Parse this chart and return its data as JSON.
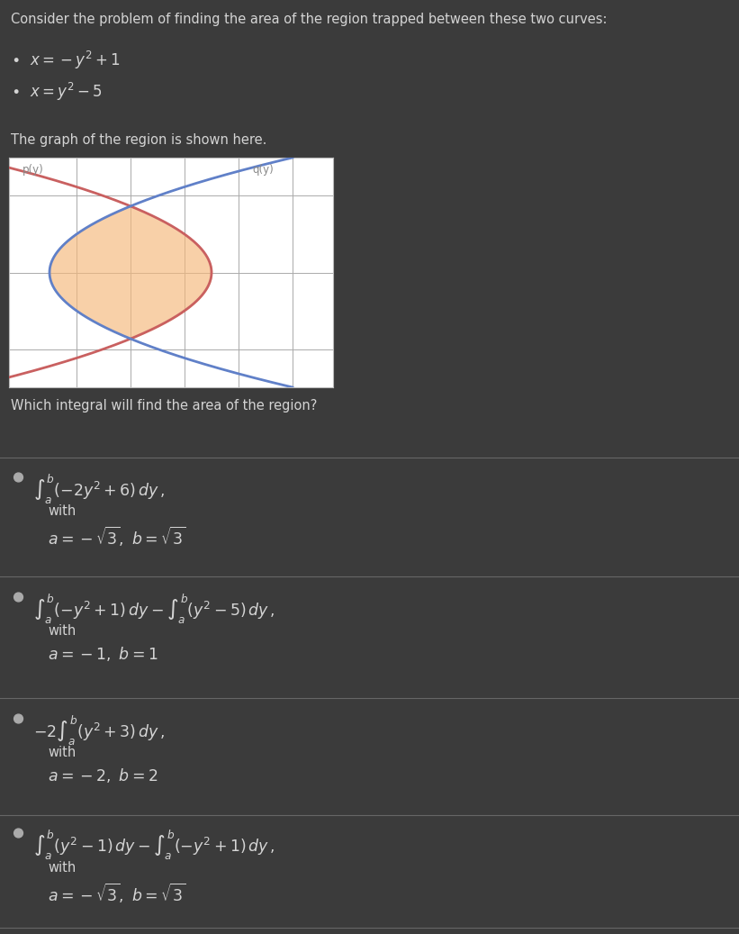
{
  "bg_color": "#3b3b3b",
  "text_color": "#d4d4d4",
  "title_text": "Consider the problem of finding the area of the region trapped between these two curves:",
  "bullet1": "$\\bullet\\ \\ x = -y^2 + 1$",
  "bullet2": "$\\bullet\\ \\ x = y^2 - 5$",
  "graph_label": "The graph of the region is shown here.",
  "question": "Which integral will find the area of the region?",
  "p_label": "p(y)",
  "q_label": "q(y)",
  "curve_p_color": "#c96060",
  "curve_q_color": "#6080c8",
  "fill_color": "#f5b87a",
  "fill_alpha": 0.65,
  "graph_bg": "#ffffff",
  "grid_color": "#aaaaaa",
  "options": [
    {
      "formula": "$\\int_a^b (-2y^2 + 6)\\, dy\\,,$",
      "detail": "with",
      "bounds": "$a = -\\sqrt{3},\\ b = \\sqrt{3}$"
    },
    {
      "formula": "$\\int_a^b (-y^2 + 1)\\, dy - \\int_a^b (y^2 - 5)\\, dy\\,,$",
      "detail": "with",
      "bounds": "$a = -1,\\ b = 1$"
    },
    {
      "formula": "$-2\\int_a^b (y^2 + 3)\\, dy\\,,$",
      "detail": "with",
      "bounds": "$a = -2,\\ b = 2$"
    },
    {
      "formula": "$\\int_a^b (y^2 - 1)\\, dy - \\int_a^b (-y^2 + 1)\\, dy\\,,$",
      "detail": "with",
      "bounds": "$a = -\\sqrt{3},\\ b = \\sqrt{3}$"
    }
  ],
  "divider_color": "#666666",
  "graph_ylim": [
    -3.0,
    3.0
  ],
  "graph_xlim": [
    -6.5,
    5.5
  ]
}
